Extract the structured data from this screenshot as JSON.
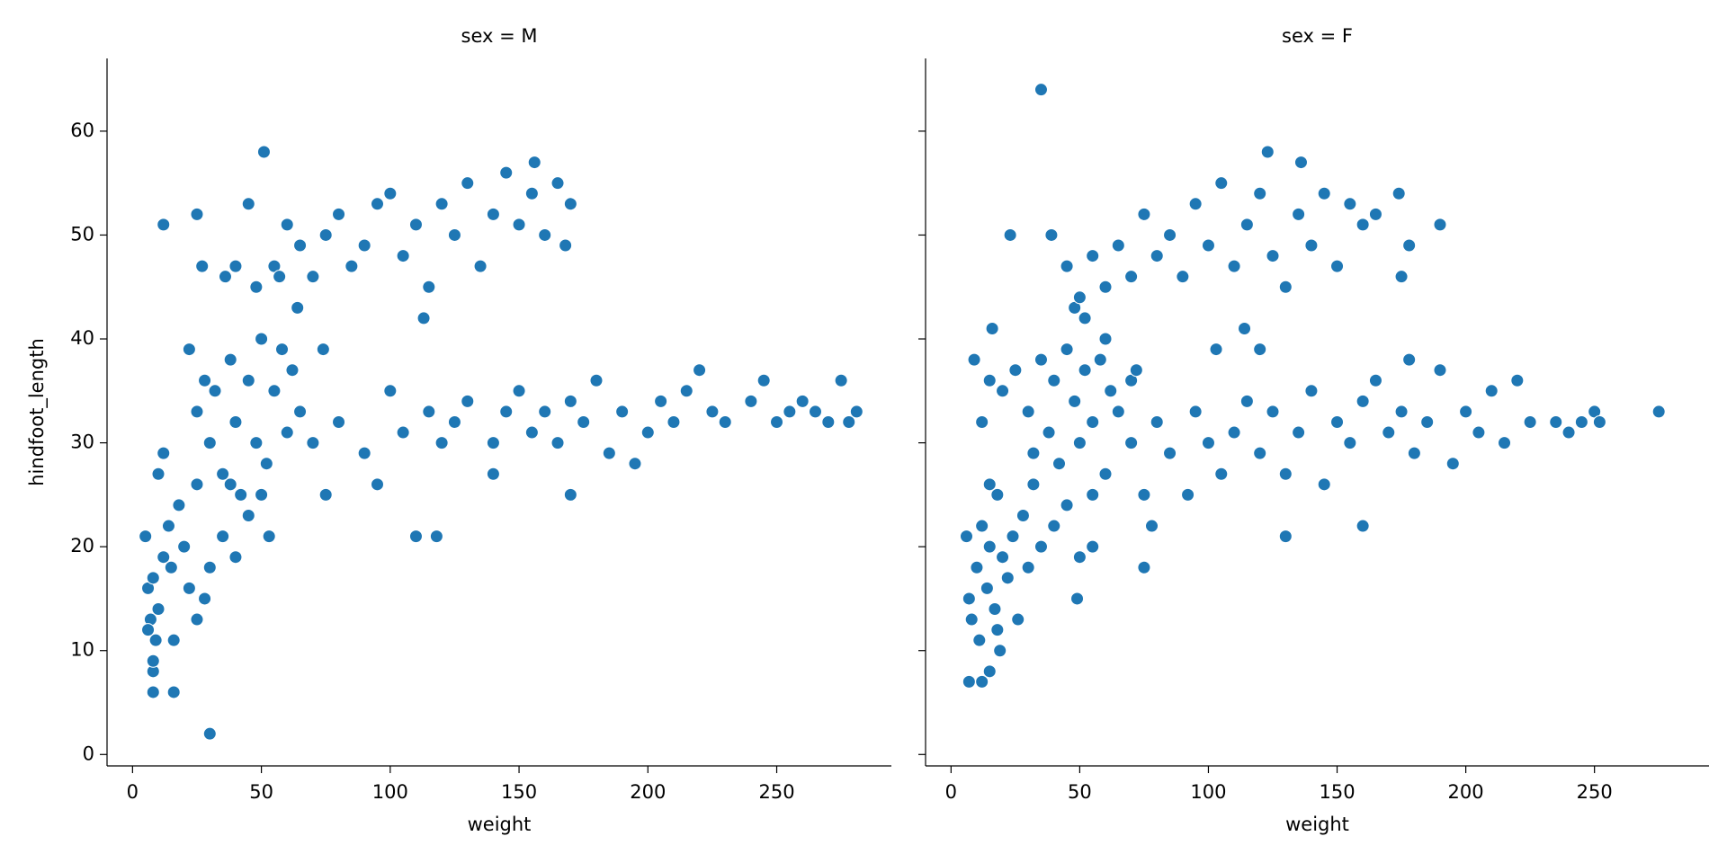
{
  "chart_data": [
    {
      "type": "scatter",
      "title": "sex = M",
      "xlabel": "weight",
      "ylabel": "hindfoot_length",
      "color": "#1f77b4",
      "xlim": [
        -9.9,
        294.5
      ],
      "ylim": [
        -1.1,
        67.0
      ],
      "xticks": [
        0,
        50,
        100,
        150,
        200,
        250
      ],
      "yticks": [
        0,
        10,
        20,
        30,
        40,
        50,
        60
      ],
      "x": [
        30,
        8,
        16,
        8,
        8,
        12,
        25,
        45,
        51,
        113,
        110,
        118,
        170,
        140,
        74,
        156,
        27,
        5,
        6,
        7,
        8,
        9,
        10,
        12,
        14,
        15,
        16,
        18,
        20,
        22,
        25,
        28,
        30,
        10,
        12,
        6,
        22,
        25,
        28,
        30,
        32,
        35,
        38,
        40,
        42,
        45,
        48,
        50,
        52,
        55,
        58,
        60,
        62,
        65,
        35,
        40,
        45,
        50,
        53,
        38,
        25,
        70,
        75,
        80,
        90,
        95,
        100,
        105,
        115,
        120,
        125,
        130,
        140,
        145,
        150,
        155,
        160,
        165,
        170,
        175,
        180,
        185,
        190,
        195,
        200,
        205,
        210,
        215,
        220,
        225,
        230,
        240,
        245,
        250,
        255,
        260,
        265,
        270,
        275,
        278,
        281,
        48,
        55,
        60,
        65,
        70,
        75,
        80,
        85,
        90,
        95,
        100,
        105,
        110,
        115,
        120,
        125,
        130,
        135,
        140,
        145,
        150,
        155,
        160,
        165,
        168,
        170,
        36,
        40,
        57,
        64
      ],
      "values": [
        2,
        6,
        6,
        8,
        9,
        51,
        52,
        53,
        58,
        42,
        21,
        21,
        25,
        27,
        39,
        57,
        47,
        21,
        16,
        13,
        17,
        11,
        14,
        19,
        22,
        18,
        11,
        24,
        20,
        16,
        13,
        15,
        18,
        27,
        29,
        12,
        39,
        33,
        36,
        30,
        35,
        27,
        38,
        32,
        25,
        36,
        30,
        40,
        28,
        35,
        39,
        31,
        37,
        33,
        21,
        19,
        23,
        25,
        21,
        26,
        26,
        30,
        25,
        32,
        29,
        26,
        35,
        31,
        33,
        30,
        32,
        34,
        30,
        33,
        35,
        31,
        33,
        30,
        34,
        32,
        36,
        29,
        33,
        28,
        31,
        34,
        32,
        35,
        37,
        33,
        32,
        34,
        36,
        32,
        33,
        34,
        33,
        32,
        36,
        32,
        33,
        45,
        47,
        51,
        49,
        46,
        50,
        52,
        47,
        49,
        53,
        54,
        48,
        51,
        45,
        53,
        50,
        55,
        47,
        52,
        56,
        51,
        54,
        50,
        55,
        49,
        53,
        46,
        47,
        46,
        43
      ]
    },
    {
      "type": "scatter",
      "title": "sex = F",
      "xlabel": "weight",
      "color": "#1f77b4",
      "xlim": [
        -9.9,
        294.5
      ],
      "ylim": [
        -1.1,
        67.0
      ],
      "xticks": [
        0,
        50,
        100,
        150,
        200,
        250
      ],
      "x": [
        35,
        7,
        12,
        15,
        19,
        49,
        75,
        130,
        160,
        23,
        39,
        178,
        190,
        174,
        123,
        136,
        114,
        16,
        9,
        103,
        120,
        6,
        7,
        8,
        10,
        11,
        12,
        14,
        15,
        17,
        18,
        20,
        22,
        24,
        26,
        28,
        30,
        32,
        35,
        40,
        45,
        50,
        55,
        15,
        18,
        12,
        15,
        20,
        25,
        30,
        32,
        35,
        38,
        40,
        42,
        45,
        48,
        50,
        52,
        55,
        58,
        60,
        62,
        65,
        70,
        72,
        55,
        60,
        70,
        75,
        78,
        80,
        85,
        92,
        95,
        100,
        105,
        110,
        115,
        120,
        125,
        130,
        135,
        140,
        145,
        150,
        155,
        160,
        165,
        170,
        175,
        178,
        180,
        185,
        190,
        195,
        200,
        205,
        210,
        215,
        220,
        225,
        235,
        240,
        245,
        250,
        252,
        275,
        45,
        48,
        50,
        52,
        55,
        60,
        65,
        70,
        75,
        80,
        85,
        90,
        95,
        100,
        105,
        110,
        115,
        120,
        125,
        130,
        135,
        140,
        145,
        150,
        155,
        160,
        165,
        175
      ],
      "values": [
        64,
        7,
        7,
        8,
        10,
        15,
        18,
        21,
        22,
        50,
        50,
        49,
        51,
        54,
        58,
        57,
        41,
        41,
        38,
        39,
        39,
        21,
        15,
        13,
        18,
        11,
        22,
        16,
        20,
        14,
        25,
        19,
        17,
        21,
        13,
        23,
        18,
        26,
        20,
        22,
        24,
        19,
        20,
        26,
        12,
        32,
        36,
        35,
        37,
        33,
        29,
        38,
        31,
        36,
        28,
        39,
        34,
        30,
        37,
        32,
        38,
        40,
        35,
        33,
        36,
        37,
        25,
        27,
        30,
        25,
        22,
        32,
        29,
        25,
        33,
        30,
        27,
        31,
        34,
        29,
        33,
        27,
        31,
        35,
        26,
        32,
        30,
        34,
        36,
        31,
        33,
        38,
        29,
        32,
        37,
        28,
        33,
        31,
        35,
        30,
        36,
        32,
        32,
        31,
        32,
        33,
        32,
        33,
        47,
        43,
        44,
        42,
        48,
        45,
        49,
        46,
        52,
        48,
        50,
        46,
        53,
        49,
        55,
        47,
        51,
        54,
        48,
        45,
        52,
        49,
        54,
        47,
        53,
        51,
        52,
        46
      ]
    }
  ]
}
